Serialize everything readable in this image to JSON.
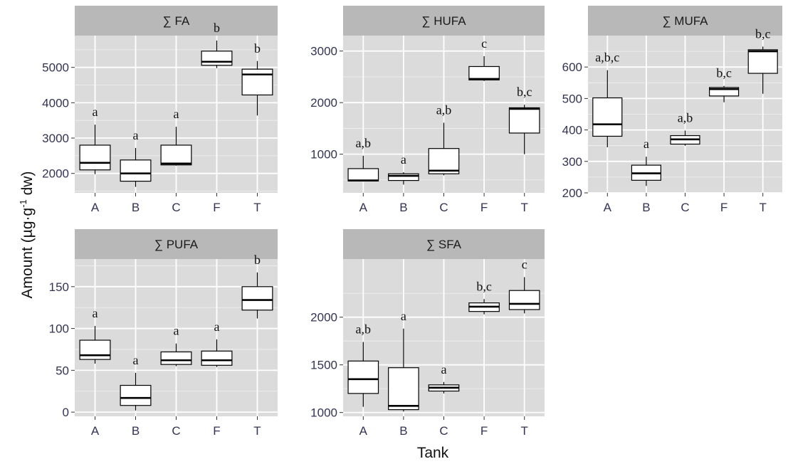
{
  "chart_data": {
    "type": "boxplot",
    "xlabel": "Tank",
    "ylabel": "Amount (µg·g-1 dw)",
    "ylabel_parts": {
      "prefix": "Amount  (µg",
      "dot": "·",
      "g": "g",
      "sup": "-1",
      "suffix": " dw)"
    },
    "categories": [
      "A",
      "B",
      "C",
      "F",
      "T"
    ],
    "grid": true,
    "panels": [
      {
        "title": "∑ FA",
        "ylim": [
          1450,
          5900
        ],
        "yticks": [
          2000,
          3000,
          4000,
          5000
        ],
        "boxes": [
          {
            "category": "A",
            "whisker_low": 1980,
            "q1": 2100,
            "median": 2300,
            "q3": 2800,
            "whisker_high": 3380,
            "label": "a"
          },
          {
            "category": "B",
            "whisker_low": 1620,
            "q1": 1780,
            "median": 2000,
            "q3": 2380,
            "whisker_high": 2720,
            "label": "a"
          },
          {
            "category": "C",
            "whisker_low": 2220,
            "q1": 2240,
            "median": 2280,
            "q3": 2800,
            "whisker_high": 3320,
            "label": "a"
          },
          {
            "category": "F",
            "whisker_low": 4980,
            "q1": 5060,
            "median": 5160,
            "q3": 5460,
            "whisker_high": 5760,
            "label": "b"
          },
          {
            "category": "T",
            "whisker_low": 3640,
            "q1": 4220,
            "median": 4800,
            "q3": 4950,
            "whisker_high": 5180,
            "label": "b"
          }
        ]
      },
      {
        "title": "∑ HUFA",
        "ylim": [
          250,
          3300
        ],
        "yticks": [
          1000,
          2000,
          3000
        ],
        "boxes": [
          {
            "category": "A",
            "whisker_low": 470,
            "q1": 480,
            "median": 490,
            "q3": 720,
            "whisker_high": 970,
            "label": "a,b"
          },
          {
            "category": "B",
            "whisker_low": 410,
            "q1": 490,
            "median": 580,
            "q3": 620,
            "whisker_high": 650,
            "label": "a"
          },
          {
            "category": "C",
            "whisker_low": 590,
            "q1": 620,
            "median": 680,
            "q3": 1110,
            "whisker_high": 1610,
            "label": "a,b"
          },
          {
            "category": "F",
            "whisker_low": 2420,
            "q1": 2440,
            "median": 2460,
            "q3": 2700,
            "whisker_high": 2900,
            "label": "c"
          },
          {
            "category": "T",
            "whisker_low": 1000,
            "q1": 1410,
            "median": 1880,
            "q3": 1900,
            "whisker_high": 1960,
            "label": "b,c"
          }
        ]
      },
      {
        "title": "∑ MUFA",
        "ylim": [
          200,
          700
        ],
        "yticks": [
          200,
          300,
          400,
          500,
          600
        ],
        "boxes": [
          {
            "category": "A",
            "whisker_low": 345,
            "q1": 380,
            "median": 418,
            "q3": 502,
            "whisker_high": 590,
            "label": "a,b,c"
          },
          {
            "category": "B",
            "whisker_low": 222,
            "q1": 240,
            "median": 262,
            "q3": 288,
            "whisker_high": 315,
            "label": "a"
          },
          {
            "category": "C",
            "whisker_low": 350,
            "q1": 355,
            "median": 370,
            "q3": 382,
            "whisker_high": 398,
            "label": "a,b"
          },
          {
            "category": "F",
            "whisker_low": 488,
            "q1": 508,
            "median": 530,
            "q3": 535,
            "whisker_high": 540,
            "label": "b,c"
          },
          {
            "category": "T",
            "whisker_low": 515,
            "q1": 580,
            "median": 650,
            "q3": 655,
            "whisker_high": 665,
            "label": "b,c"
          }
        ]
      },
      {
        "title": "∑ PUFA",
        "ylim": [
          -5,
          183
        ],
        "yticks": [
          0,
          50,
          100,
          150
        ],
        "boxes": [
          {
            "category": "A",
            "whisker_low": 58,
            "q1": 63,
            "median": 68,
            "q3": 86,
            "whisker_high": 103,
            "label": "a"
          },
          {
            "category": "B",
            "whisker_low": 2,
            "q1": 8,
            "median": 17,
            "q3": 32,
            "whisker_high": 47,
            "label": "a"
          },
          {
            "category": "C",
            "whisker_low": 55,
            "q1": 57,
            "median": 62,
            "q3": 72,
            "whisker_high": 82,
            "label": "a"
          },
          {
            "category": "F",
            "whisker_low": 54,
            "q1": 56,
            "median": 62,
            "q3": 73,
            "whisker_high": 87,
            "label": "a"
          },
          {
            "category": "T",
            "whisker_low": 112,
            "q1": 122,
            "median": 134,
            "q3": 150,
            "whisker_high": 167,
            "label": "b"
          }
        ]
      },
      {
        "title": "∑ SFA",
        "ylim": [
          960,
          2610
        ],
        "yticks": [
          1000,
          1500,
          2000
        ],
        "boxes": [
          {
            "category": "A",
            "whisker_low": 1060,
            "q1": 1200,
            "median": 1350,
            "q3": 1540,
            "whisker_high": 1740,
            "label": "a,b"
          },
          {
            "category": "B",
            "whisker_low": 1010,
            "q1": 1030,
            "median": 1070,
            "q3": 1470,
            "whisker_high": 1880,
            "label": "a"
          },
          {
            "category": "C",
            "whisker_low": 1200,
            "q1": 1225,
            "median": 1260,
            "q3": 1290,
            "whisker_high": 1320,
            "label": "a"
          },
          {
            "category": "F",
            "whisker_low": 2030,
            "q1": 2060,
            "median": 2110,
            "q3": 2150,
            "whisker_high": 2190,
            "label": "b,c"
          },
          {
            "category": "T",
            "whisker_low": 2040,
            "q1": 2080,
            "median": 2140,
            "q3": 2280,
            "whisker_high": 2420,
            "label": "c"
          }
        ]
      }
    ]
  },
  "colors": {
    "panel_background": "#dbdbdb",
    "strip_background": "#b8b8b8",
    "grid_major": "#ffffff",
    "box_fill": "#ffffff",
    "box_stroke": "#000000",
    "tick_label": "#333355"
  }
}
